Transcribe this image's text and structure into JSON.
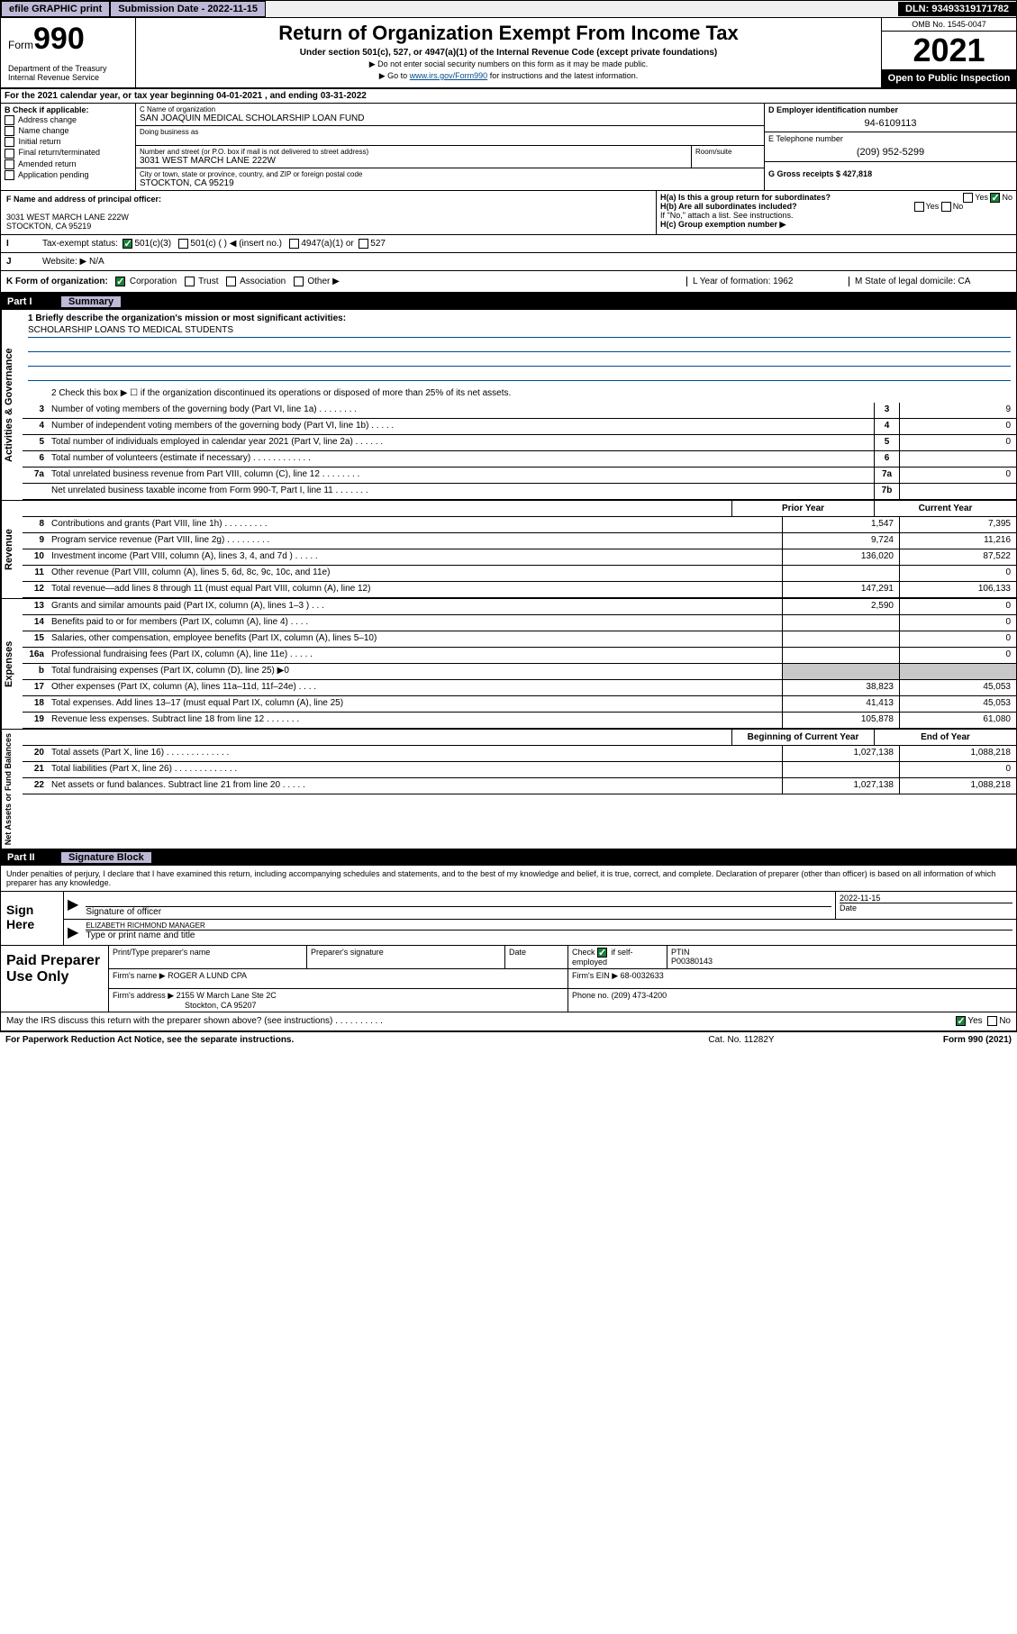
{
  "topbar": {
    "efile": "efile GRAPHIC print",
    "subdate_label": "Submission Date - 2022-11-15",
    "dln": "DLN: 93493319171782"
  },
  "header": {
    "form_prefix": "Form",
    "form_num": "990",
    "title": "Return of Organization Exempt From Income Tax",
    "subtitle": "Under section 501(c), 527, or 4947(a)(1) of the Internal Revenue Code (except private foundations)",
    "note1": "▶ Do not enter social security numbers on this form as it may be made public.",
    "note2_pre": "▶ Go to ",
    "note2_link": "www.irs.gov/Form990",
    "note2_post": " for instructions and the latest information.",
    "omb": "OMB No. 1545-0047",
    "year": "2021",
    "open": "Open to Public Inspection",
    "dept": "Department of the Treasury Internal Revenue Service"
  },
  "row_a": {
    "label": "A",
    "text": "For the 2021 calendar year, or tax year beginning 04-01-2021   , and ending 03-31-2022"
  },
  "col_b": {
    "label": "B Check if applicable:",
    "items": [
      "Address change",
      "Name change",
      "Initial return",
      "Final return/terminated",
      "Amended return",
      "Application pending"
    ]
  },
  "col_c": {
    "name_label": "C Name of organization",
    "name": "SAN JOAQUIN MEDICAL SCHOLARSHIP LOAN FUND",
    "dba_label": "Doing business as",
    "addr_label": "Number and street (or P.O. box if mail is not delivered to street address)",
    "addr": "3031 WEST MARCH LANE 222W",
    "suite_label": "Room/suite",
    "city_label": "City or town, state or province, country, and ZIP or foreign postal code",
    "city": "STOCKTON, CA  95219"
  },
  "col_de": {
    "d_label": "D Employer identification number",
    "d_val": "94-6109113",
    "e_label": "E Telephone number",
    "e_val": "(209) 952-5299",
    "g_label": "G Gross receipts $ 427,818"
  },
  "fgh": {
    "f_label": "F  Name and address of principal officer:",
    "f_addr1": "3031 WEST MARCH LANE 222W",
    "f_addr2": "STOCKTON, CA  95219",
    "ha": "H(a)  Is this a group return for subordinates?",
    "ha_yes": "Yes",
    "ha_no": "No",
    "hb": "H(b)  Are all subordinates included?",
    "hb_yes": "Yes",
    "hb_no": "No",
    "hb_note": "If \"No,\" attach a list. See instructions.",
    "hc": "H(c)  Group exemption number ▶"
  },
  "row_i": {
    "label": "I",
    "text": "Tax-exempt status:",
    "opt1": "501(c)(3)",
    "opt2": "501(c) (   ) ◀ (insert no.)",
    "opt3": "4947(a)(1) or",
    "opt4": "527"
  },
  "row_j": {
    "label": "J",
    "text": "Website: ▶",
    "val": "N/A"
  },
  "row_k": {
    "label": "K Form of organization:",
    "opts": [
      "Corporation",
      "Trust",
      "Association",
      "Other ▶"
    ],
    "l": "L Year of formation: 1962",
    "m": "M State of legal domicile: CA"
  },
  "part1": {
    "num": "Part I",
    "title": "Summary"
  },
  "mission": {
    "label": "1  Briefly describe the organization's mission or most significant activities:",
    "text": "SCHOLARSHIP LOANS TO MEDICAL STUDENTS"
  },
  "line2": "2   Check this box ▶ ☐  if the organization discontinued its operations or disposed of more than 25% of its net assets.",
  "gov_lines": [
    {
      "n": "3",
      "d": "Number of voting members of the governing body (Part VI, line 1a)   .    .    .    .    .    .    .    .",
      "b": "3",
      "v": "9"
    },
    {
      "n": "4",
      "d": "Number of independent voting members of the governing body (Part VI, line 1b)   .    .    .    .    .",
      "b": "4",
      "v": "0"
    },
    {
      "n": "5",
      "d": "Total number of individuals employed in calendar year 2021 (Part V, line 2a)   .    .    .    .    .    .",
      "b": "5",
      "v": "0"
    },
    {
      "n": "6",
      "d": "Total number of volunteers (estimate if necessary)    .    .    .    .    .    .    .    .    .    .    .    .",
      "b": "6",
      "v": ""
    },
    {
      "n": "7a",
      "d": "Total unrelated business revenue from Part VIII, column (C), line 12   .    .    .    .    .    .    .    .",
      "b": "7a",
      "v": "0"
    },
    {
      "n": "",
      "d": "Net unrelated business taxable income from Form 990-T, Part I, line 11   .    .    .    .    .    .    .",
      "b": "7b",
      "v": ""
    }
  ],
  "col_hdrs": {
    "prior": "Prior Year",
    "current": "Current Year"
  },
  "rev_lines": [
    {
      "n": "8",
      "d": "Contributions and grants (Part VIII, line 1h)    .    .    .    .    .    .    .    .    .",
      "p": "1,547",
      "c": "7,395"
    },
    {
      "n": "9",
      "d": "Program service revenue (Part VIII, line 2g)    .    .    .    .    .    .    .    .    .",
      "p": "9,724",
      "c": "11,216"
    },
    {
      "n": "10",
      "d": "Investment income (Part VIII, column (A), lines 3, 4, and 7d )    .    .    .    .    .",
      "p": "136,020",
      "c": "87,522"
    },
    {
      "n": "11",
      "d": "Other revenue (Part VIII, column (A), lines 5, 6d, 8c, 9c, 10c, and 11e)",
      "p": "",
      "c": "0"
    },
    {
      "n": "12",
      "d": "Total revenue—add lines 8 through 11 (must equal Part VIII, column (A), line 12)",
      "p": "147,291",
      "c": "106,133"
    }
  ],
  "exp_lines": [
    {
      "n": "13",
      "d": "Grants and similar amounts paid (Part IX, column (A), lines 1–3 )    .    .    .",
      "p": "2,590",
      "c": "0"
    },
    {
      "n": "14",
      "d": "Benefits paid to or for members (Part IX, column (A), line 4)    .    .    .    .",
      "p": "",
      "c": "0"
    },
    {
      "n": "15",
      "d": "Salaries, other compensation, employee benefits (Part IX, column (A), lines 5–10)",
      "p": "",
      "c": "0"
    },
    {
      "n": "16a",
      "d": "Professional fundraising fees (Part IX, column (A), line 11e)    .    .    .    .    .",
      "p": "",
      "c": "0"
    },
    {
      "n": "b",
      "d": "Total fundraising expenses (Part IX, column (D), line 25) ▶0",
      "p": "shade",
      "c": "shade"
    },
    {
      "n": "17",
      "d": "Other expenses (Part IX, column (A), lines 11a–11d, 11f–24e)   .    .    .    .",
      "p": "38,823",
      "c": "45,053"
    },
    {
      "n": "18",
      "d": "Total expenses. Add lines 13–17 (must equal Part IX, column (A), line 25)",
      "p": "41,413",
      "c": "45,053"
    },
    {
      "n": "19",
      "d": "Revenue less expenses. Subtract line 18 from line 12   .    .    .    .    .    .    .",
      "p": "105,878",
      "c": "61,080"
    }
  ],
  "bal_hdrs": {
    "beg": "Beginning of Current Year",
    "end": "End of Year"
  },
  "bal_lines": [
    {
      "n": "20",
      "d": "Total assets (Part X, line 16)   .    .    .    .    .    .    .    .    .    .    .    .    .",
      "p": "1,027,138",
      "c": "1,088,218"
    },
    {
      "n": "21",
      "d": "Total liabilities (Part X, line 26)   .    .    .    .    .    .    .    .    .    .    .    .    .",
      "p": "",
      "c": "0"
    },
    {
      "n": "22",
      "d": "Net assets or fund balances. Subtract line 21 from line 20   .    .    .    .    .",
      "p": "1,027,138",
      "c": "1,088,218"
    }
  ],
  "vtabs": {
    "gov": "Activities & Governance",
    "rev": "Revenue",
    "exp": "Expenses",
    "bal": "Net Assets or Fund Balances"
  },
  "part2": {
    "num": "Part II",
    "title": "Signature Block"
  },
  "sig": {
    "intro": "Under penalties of perjury, I declare that I have examined this return, including accompanying schedules and statements, and to the best of my knowledge and belief, it is true, correct, and complete. Declaration of preparer (other than officer) is based on all information of which preparer has any knowledge.",
    "sign_here": "Sign Here",
    "sig_label": "Signature of officer",
    "date_label": "Date",
    "date_val": "2022-11-15",
    "name": "ELIZABETH RICHMOND MANAGER",
    "name_label": "Type or print name and title"
  },
  "prep": {
    "title": "Paid Preparer Use Only",
    "h1": "Print/Type preparer's name",
    "h2": "Preparer's signature",
    "h3": "Date",
    "h4_a": "Check",
    "h4_b": "if self-employed",
    "h5": "PTIN",
    "ptin": "P00380143",
    "firm_label": "Firm's name    ▶",
    "firm": "ROGER A LUND CPA",
    "ein_label": "Firm's EIN ▶",
    "ein": "68-0032633",
    "addr_label": "Firm's address ▶",
    "addr1": "2155 W March Lane Ste 2C",
    "addr2": "Stockton, CA  95207",
    "phone_label": "Phone no.",
    "phone": "(209) 473-4200"
  },
  "footer": {
    "q": "May the IRS discuss this return with the preparer shown above? (see instructions)    .    .    .    .    .    .    .    .    .    .",
    "yes": "Yes",
    "no": "No",
    "paperwork": "For Paperwork Reduction Act Notice, see the separate instructions.",
    "cat": "Cat. No. 11282Y",
    "form": "Form 990 (2021)"
  }
}
